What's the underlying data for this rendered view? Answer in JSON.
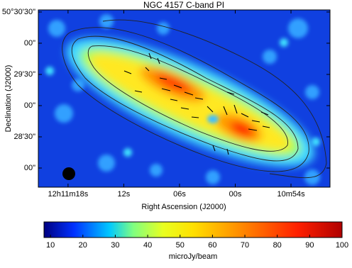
{
  "chart_data": {
    "type": "heatmap",
    "title": "NGC 4157   C-band   PI",
    "x_label": "Right Ascension (J2000)",
    "y_label": "Declination (J2000)",
    "xlim": [
      21.2,
      -10.2
    ],
    "xticks": [
      {
        "value": 18,
        "label": "12h11m18s"
      },
      {
        "value": 12,
        "label": "12s"
      },
      {
        "value": 6,
        "label": "06s"
      },
      {
        "value": 0,
        "label": "00s"
      },
      {
        "value": -6,
        "label": "10m54s"
      }
    ],
    "ylim": [
      1661.6,
      1832
    ],
    "yticks": [
      {
        "value": 1830,
        "label": "50°30'30\""
      },
      {
        "value": 1800,
        "label": "00\""
      },
      {
        "value": 1770,
        "label": "29'30\""
      },
      {
        "value": 1740,
        "label": "00\""
      },
      {
        "value": 1710,
        "label": "28'30\""
      },
      {
        "value": 1680,
        "label": "00\""
      }
    ],
    "colorbar": {
      "label": "microJy/beam",
      "lim": [
        8,
        100
      ],
      "ticks": [
        10,
        20,
        30,
        40,
        50,
        60,
        70,
        80,
        90,
        100
      ]
    }
  }
}
